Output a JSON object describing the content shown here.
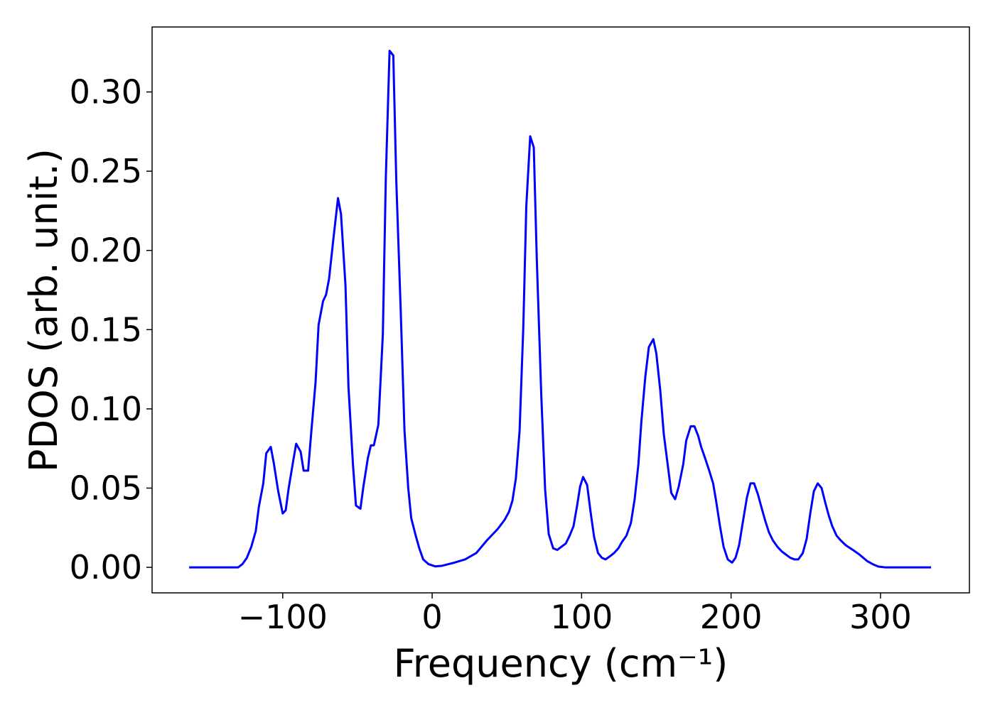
{
  "chart_data": {
    "type": "line",
    "xlabel": "Frequency (cm⁻¹)",
    "ylabel": "PDOS (arb. unit.)",
    "xlim": [
      -187.4,
      359.5
    ],
    "ylim": [
      -0.0161,
      0.341
    ],
    "xticks": [
      {
        "value": -100,
        "label": "−100"
      },
      0,
      100,
      200,
      300
    ],
    "yticks": [
      {
        "value": 0,
        "label": "0.00"
      },
      {
        "value": 0.05,
        "label": "0.05"
      },
      {
        "value": 0.1,
        "label": "0.10"
      },
      {
        "value": 0.15,
        "label": "0.15"
      },
      {
        "value": 0.2,
        "label": "0.20"
      },
      {
        "value": 0.25,
        "label": "0.25"
      },
      {
        "value": 0.3,
        "label": "0.30"
      }
    ],
    "grid": false,
    "series": [
      {
        "color": "#0000ff",
        "x": [
          -162.6,
          -129.8,
          -127,
          -124,
          -121,
          -118,
          -116,
          -113,
          -111,
          -108,
          -106,
          -103,
          -100,
          -98,
          -96,
          -93,
          -91,
          -88,
          -86,
          -83,
          -81,
          -78,
          -76,
          -73,
          -71,
          -69,
          -66,
          -63,
          -61,
          -58,
          -56,
          -53,
          -51,
          -48,
          -46,
          -43,
          -41,
          -39,
          -36,
          -33,
          -31,
          -28.5,
          -26,
          -24,
          -21,
          -18.5,
          -16,
          -14,
          -11,
          -8.6,
          -6,
          -2.4,
          2,
          6.7,
          15,
          22,
          29.5,
          36.6,
          43.7,
          48.5,
          51.4,
          53.7,
          56,
          58.5,
          61,
          63,
          65.6,
          68,
          70,
          73,
          75.6,
          78,
          81,
          83.7,
          86.5,
          89.4,
          92,
          94.6,
          97,
          99,
          101,
          103.7,
          106,
          108.4,
          111,
          113.6,
          116,
          119,
          121.7,
          124.6,
          127,
          130,
          133,
          135.5,
          138,
          140,
          142.6,
          145,
          148,
          150,
          152.6,
          155,
          158,
          160,
          162.6,
          165,
          168,
          170,
          173,
          175.5,
          178,
          180,
          182.6,
          185.4,
          188,
          190,
          192.6,
          195,
          197.8,
          200.7,
          203,
          205.4,
          207.8,
          210.6,
          213,
          215.4,
          218,
          220.6,
          223,
          225.4,
          228,
          231,
          234,
          236.8,
          239.7,
          242.5,
          245,
          248,
          250.6,
          253,
          255.4,
          258,
          260.6,
          263,
          265.3,
          267.7,
          270.6,
          273.4,
          276.7,
          281.5,
          286,
          291,
          294.8,
          298.6,
          303,
          333.8
        ],
        "values": [
          0,
          0,
          0.002,
          0.006,
          0.013,
          0.023,
          0.038,
          0.053,
          0.072,
          0.076,
          0.066,
          0.048,
          0.034,
          0.036,
          0.05,
          0.067,
          0.078,
          0.073,
          0.061,
          0.061,
          0.084,
          0.117,
          0.153,
          0.168,
          0.172,
          0.182,
          0.208,
          0.233,
          0.223,
          0.178,
          0.114,
          0.065,
          0.039,
          0.037,
          0.051,
          0.069,
          0.077,
          0.077,
          0.09,
          0.147,
          0.246,
          0.326,
          0.323,
          0.244,
          0.161,
          0.086,
          0.05,
          0.031,
          0.02,
          0.012,
          0.005,
          0.002,
          0.0006,
          0.001,
          0.003,
          0.005,
          0.009,
          0.017,
          0.024,
          0.03,
          0.035,
          0.042,
          0.056,
          0.086,
          0.152,
          0.228,
          0.272,
          0.265,
          0.195,
          0.109,
          0.049,
          0.021,
          0.012,
          0.011,
          0.013,
          0.015,
          0.02,
          0.026,
          0.039,
          0.051,
          0.057,
          0.052,
          0.035,
          0.019,
          0.009,
          0.006,
          0.005,
          0.007,
          0.009,
          0.012,
          0.016,
          0.02,
          0.028,
          0.043,
          0.065,
          0.092,
          0.12,
          0.139,
          0.144,
          0.135,
          0.112,
          0.084,
          0.062,
          0.047,
          0.043,
          0.051,
          0.065,
          0.08,
          0.089,
          0.089,
          0.083,
          0.076,
          0.069,
          0.061,
          0.053,
          0.042,
          0.026,
          0.013,
          0.005,
          0.003,
          0.006,
          0.014,
          0.028,
          0.044,
          0.053,
          0.053,
          0.046,
          0.037,
          0.029,
          0.022,
          0.017,
          0.013,
          0.01,
          0.008,
          0.006,
          0.005,
          0.005,
          0.009,
          0.018,
          0.034,
          0.048,
          0.053,
          0.05,
          0.041,
          0.033,
          0.026,
          0.02,
          0.017,
          0.014,
          0.011,
          0.008,
          0.004,
          0.002,
          0.0005,
          0,
          0
        ]
      }
    ]
  }
}
